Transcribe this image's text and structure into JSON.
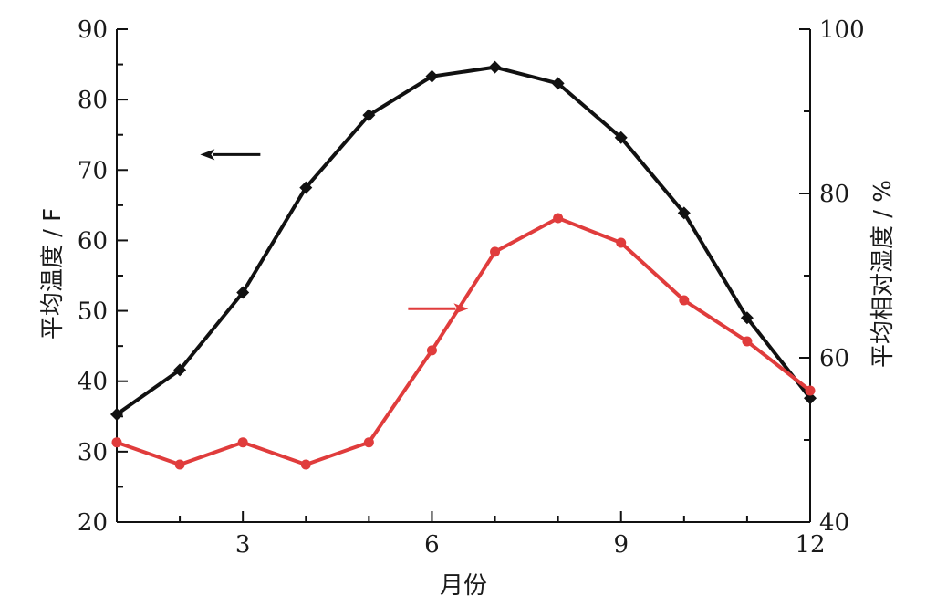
{
  "chart_data": {
    "type": "line",
    "title": "",
    "xlabel": "月份",
    "ylabel": "平均温度 / F",
    "y2label": "平均相对湿度 / %",
    "xlim": [
      1,
      12
    ],
    "ylim": [
      20,
      90
    ],
    "y2lim": [
      40,
      100
    ],
    "x_ticks": [
      3,
      6,
      9,
      12
    ],
    "y_ticks": [
      20,
      30,
      40,
      50,
      60,
      70,
      80,
      90
    ],
    "y2_ticks": [
      40,
      60,
      80,
      100
    ],
    "grid": false,
    "legend": "none",
    "x": [
      1,
      2,
      3,
      4,
      5,
      6,
      7,
      8,
      9,
      10,
      11,
      12
    ],
    "series": [
      {
        "axis": "left",
        "color": "#111111",
        "marker": "diamond",
        "values": [
          35.3,
          41.6,
          52.6,
          67.5,
          77.8,
          83.3,
          84.6,
          82.3,
          74.6,
          63.9,
          49.0,
          37.6
        ]
      },
      {
        "axis": "right",
        "color": "#e03c3c",
        "marker": "circle",
        "values": [
          49.7,
          47.0,
          49.7,
          47.0,
          49.7,
          60.9,
          72.9,
          77.0,
          74.0,
          67.0,
          62.0,
          56.0
        ]
      }
    ],
    "annotations": [
      {
        "type": "arrow",
        "direction": "left",
        "color": "#111111",
        "x": 2.8,
        "y": 72.2
      },
      {
        "type": "arrow",
        "direction": "right",
        "color": "#e03c3c",
        "x": 6.1,
        "y": 50.3
      }
    ]
  }
}
